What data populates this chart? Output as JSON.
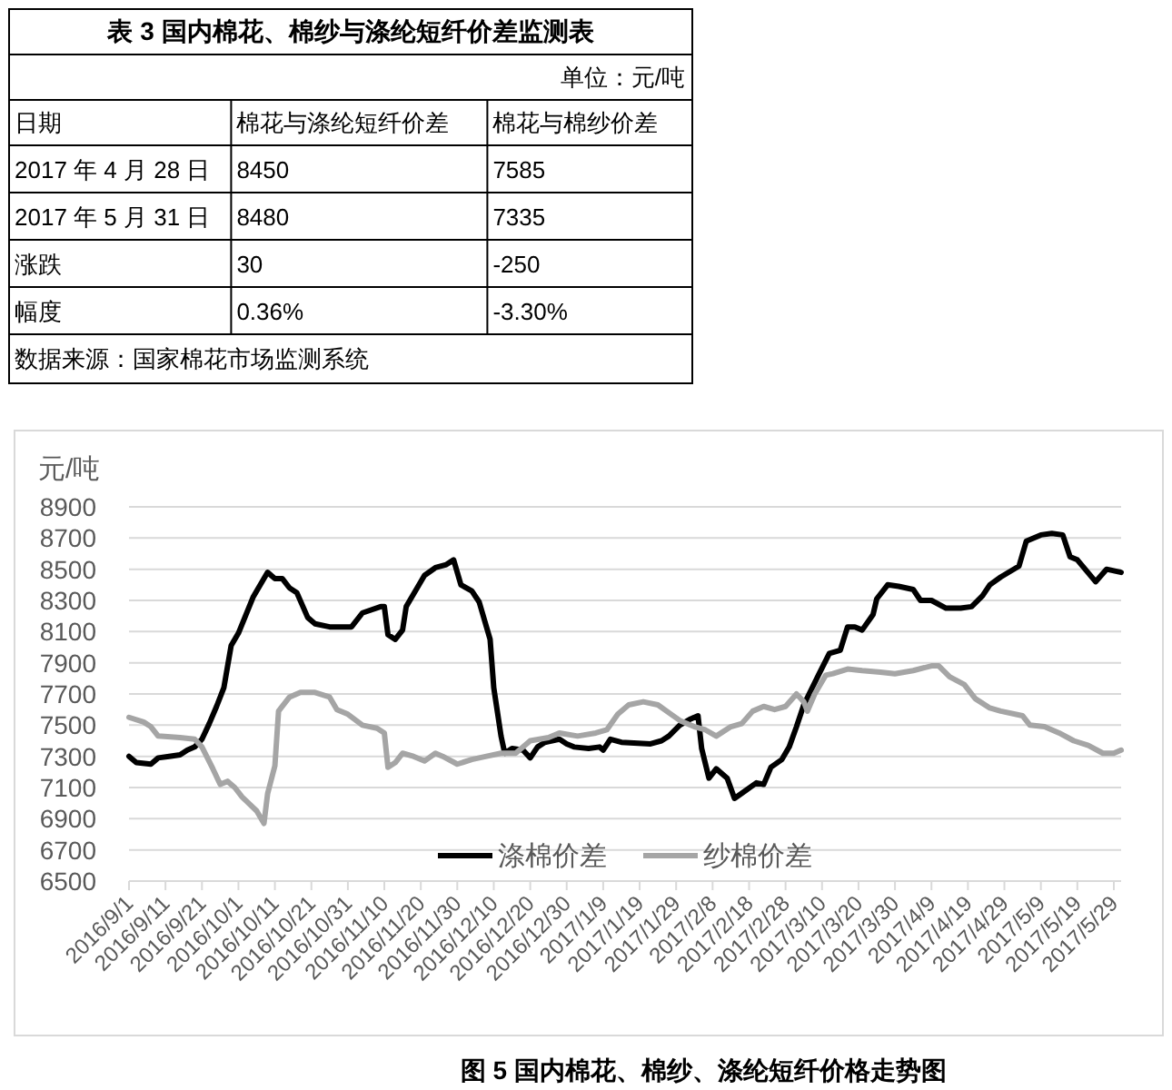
{
  "chart_data": [
    {
      "type": "other",
      "title": "表 3 国内棉花、棉纱与涤纶短纤价差监测表",
      "subtitle": "单位：元/吨",
      "ylabel": "日期",
      "categories": [
        "棉花与涤纶短纤价差",
        "棉花与棉纱价差"
      ],
      "y_categories": [
        "2017 年 4 月 28 日",
        "2017 年 5 月 31 日",
        "涨跌",
        "幅度"
      ],
      "cell_labels": [
        [
          "8450",
          "7585"
        ],
        [
          "8480",
          "7335"
        ],
        [
          "30",
          "-250"
        ],
        [
          "0.36%",
          "-3.30%"
        ]
      ],
      "annotations": [
        "数据来源：国家棉花市场监测系统"
      ]
    },
    {
      "type": "line",
      "title": "图 5 国内棉花、棉纱、涤纶短纤价格走势图",
      "ylabel": "元/吨",
      "xlim": [
        "2016-09-01",
        "2017-05-31"
      ],
      "ylim": [
        6500,
        8900
      ],
      "xticks": [
        {
          "value": "2016-09-01",
          "label": "2016/9/1"
        },
        {
          "value": "2016-09-11",
          "label": "2016/9/11"
        },
        {
          "value": "2016-09-21",
          "label": "2016/9/21"
        },
        {
          "value": "2016-10-01",
          "label": "2016/10/1"
        },
        {
          "value": "2016-10-11",
          "label": "2016/10/11"
        },
        {
          "value": "2016-10-21",
          "label": "2016/10/21"
        },
        {
          "value": "2016-10-31",
          "label": "2016/10/31"
        },
        {
          "value": "2016-11-10",
          "label": "2016/11/10"
        },
        {
          "value": "2016-11-20",
          "label": "2016/11/20"
        },
        {
          "value": "2016-11-30",
          "label": "2016/11/30"
        },
        {
          "value": "2016-12-10",
          "label": "2016/12/10"
        },
        {
          "value": "2016-12-20",
          "label": "2016/12/20"
        },
        {
          "value": "2016-12-30",
          "label": "2016/12/30"
        },
        {
          "value": "2017-01-09",
          "label": "2017/1/9"
        },
        {
          "value": "2017-01-19",
          "label": "2017/1/19"
        },
        {
          "value": "2017-01-29",
          "label": "2017/1/29"
        },
        {
          "value": "2017-02-08",
          "label": "2017/2/8"
        },
        {
          "value": "2017-02-18",
          "label": "2017/2/18"
        },
        {
          "value": "2017-02-28",
          "label": "2017/2/28"
        },
        {
          "value": "2017-03-10",
          "label": "2017/3/10"
        },
        {
          "value": "2017-03-20",
          "label": "2017/3/20"
        },
        {
          "value": "2017-03-30",
          "label": "2017/3/30"
        },
        {
          "value": "2017-04-09",
          "label": "2017/4/9"
        },
        {
          "value": "2017-04-19",
          "label": "2017/4/19"
        },
        {
          "value": "2017-04-29",
          "label": "2017/4/29"
        },
        {
          "value": "2017-05-09",
          "label": "2017/5/9"
        },
        {
          "value": "2017-05-19",
          "label": "2017/5/19"
        },
        {
          "value": "2017-05-29",
          "label": "2017/5/29"
        }
      ],
      "yticks": [
        6500,
        6700,
        6900,
        7100,
        7300,
        7500,
        7700,
        7900,
        8100,
        8300,
        8500,
        8700,
        8900
      ],
      "grid": "y",
      "legend": "bottom",
      "series": [
        {
          "name": "涤棉价差",
          "color": "#000000",
          "x": [
            "2016-09-01",
            "2016-09-03",
            "2016-09-07",
            "2016-09-09",
            "2016-09-12",
            "2016-09-15",
            "2016-09-17",
            "2016-09-19",
            "2016-09-21",
            "2016-09-23",
            "2016-09-25",
            "2016-09-27",
            "2016-09-29",
            "2016-10-01",
            "2016-10-05",
            "2016-10-09",
            "2016-10-11",
            "2016-10-13",
            "2016-10-15",
            "2016-10-17",
            "2016-10-20",
            "2016-10-22",
            "2016-10-26",
            "2016-11-01",
            "2016-11-04",
            "2016-11-09",
            "2016-11-10",
            "2016-11-11",
            "2016-11-13",
            "2016-11-15",
            "2016-11-16",
            "2016-11-19",
            "2016-11-21",
            "2016-11-24",
            "2016-11-27",
            "2016-11-29",
            "2016-12-01",
            "2016-12-04",
            "2016-12-06",
            "2016-12-09",
            "2016-12-10",
            "2016-12-12",
            "2016-12-13",
            "2016-12-15",
            "2016-12-18",
            "2016-12-20",
            "2016-12-22",
            "2016-12-24",
            "2016-12-28",
            "2016-12-30",
            "2017-01-01",
            "2017-01-05",
            "2017-01-08",
            "2017-01-09",
            "2017-01-11",
            "2017-01-14",
            "2017-01-22",
            "2017-01-25",
            "2017-01-27",
            "2017-01-30",
            "2017-02-02",
            "2017-02-04",
            "2017-02-05",
            "2017-02-07",
            "2017-02-09",
            "2017-02-12",
            "2017-02-14",
            "2017-02-17",
            "2017-02-20",
            "2017-02-22",
            "2017-02-24",
            "2017-02-27",
            "2017-03-01",
            "2017-03-03",
            "2017-03-05",
            "2017-03-09",
            "2017-03-12",
            "2017-03-15",
            "2017-03-17",
            "2017-03-19",
            "2017-03-21",
            "2017-03-24",
            "2017-03-25",
            "2017-03-28",
            "2017-03-31",
            "2017-04-04",
            "2017-04-06",
            "2017-04-09",
            "2017-04-13",
            "2017-04-17",
            "2017-04-20",
            "2017-04-23",
            "2017-04-25",
            "2017-04-28",
            "2017-05-03",
            "2017-05-05",
            "2017-05-09",
            "2017-05-12",
            "2017-05-15",
            "2017-05-17",
            "2017-05-19",
            "2017-05-24",
            "2017-05-27",
            "2017-05-31"
          ],
          "values": [
            7300,
            7260,
            7250,
            7290,
            7300,
            7310,
            7340,
            7360,
            7410,
            7510,
            7620,
            7740,
            8010,
            8090,
            8320,
            8480,
            8440,
            8440,
            8380,
            8350,
            8190,
            8150,
            8130,
            8130,
            8220,
            8260,
            8260,
            8080,
            8050,
            8110,
            8260,
            8380,
            8460,
            8510,
            8530,
            8560,
            8400,
            8360,
            8290,
            8050,
            7740,
            7430,
            7320,
            7350,
            7340,
            7290,
            7360,
            7390,
            7410,
            7380,
            7360,
            7350,
            7360,
            7340,
            7410,
            7390,
            7380,
            7400,
            7430,
            7500,
            7540,
            7560,
            7350,
            7160,
            7220,
            7160,
            7030,
            7080,
            7130,
            7120,
            7230,
            7280,
            7360,
            7490,
            7630,
            7820,
            7960,
            7980,
            8130,
            8130,
            8110,
            8210,
            8310,
            8400,
            8390,
            8370,
            8300,
            8300,
            8250,
            8250,
            8260,
            8330,
            8400,
            8450,
            8520,
            8680,
            8720,
            8730,
            8720,
            8580,
            8560,
            8420,
            8500,
            8480
          ]
        },
        {
          "name": "纱棉价差",
          "color": "#a5a5a5",
          "x": [
            "2016-09-01",
            "2016-09-05",
            "2016-09-07",
            "2016-09-09",
            "2016-09-15",
            "2016-09-19",
            "2016-09-21",
            "2016-09-24",
            "2016-09-26",
            "2016-09-28",
            "2016-09-30",
            "2016-10-02",
            "2016-10-06",
            "2016-10-08",
            "2016-10-09",
            "2016-10-11",
            "2016-10-12",
            "2016-10-15",
            "2016-10-18",
            "2016-10-22",
            "2016-10-26",
            "2016-10-28",
            "2016-10-31",
            "2016-11-04",
            "2016-11-08",
            "2016-11-10",
            "2016-11-11",
            "2016-11-13",
            "2016-11-15",
            "2016-11-18",
            "2016-11-21",
            "2016-11-24",
            "2016-11-26",
            "2016-11-30",
            "2016-12-04",
            "2016-12-08",
            "2016-12-12",
            "2016-12-16",
            "2016-12-20",
            "2016-12-25",
            "2016-12-28",
            "2017-01-02",
            "2017-01-07",
            "2017-01-10",
            "2017-01-13",
            "2017-01-16",
            "2017-01-20",
            "2017-01-24",
            "2017-01-27",
            "2017-01-30",
            "2017-02-03",
            "2017-02-06",
            "2017-02-09",
            "2017-02-13",
            "2017-02-16",
            "2017-02-19",
            "2017-02-22",
            "2017-02-25",
            "2017-02-28",
            "2017-03-03",
            "2017-03-05",
            "2017-03-06",
            "2017-03-08",
            "2017-03-11",
            "2017-03-13",
            "2017-03-17",
            "2017-03-21",
            "2017-03-26",
            "2017-03-30",
            "2017-04-04",
            "2017-04-09",
            "2017-04-11",
            "2017-04-14",
            "2017-04-18",
            "2017-04-21",
            "2017-04-25",
            "2017-04-28",
            "2017-05-04",
            "2017-05-06",
            "2017-05-10",
            "2017-05-14",
            "2017-05-18",
            "2017-05-22",
            "2017-05-26",
            "2017-05-29",
            "2017-05-31"
          ],
          "values": [
            7550,
            7520,
            7490,
            7430,
            7420,
            7410,
            7360,
            7220,
            7120,
            7140,
            7100,
            7040,
            6950,
            6870,
            7060,
            7240,
            7590,
            7680,
            7710,
            7710,
            7680,
            7600,
            7570,
            7500,
            7480,
            7450,
            7230,
            7260,
            7320,
            7300,
            7270,
            7320,
            7300,
            7250,
            7280,
            7300,
            7320,
            7320,
            7400,
            7420,
            7450,
            7430,
            7450,
            7470,
            7570,
            7630,
            7650,
            7630,
            7580,
            7530,
            7490,
            7470,
            7430,
            7490,
            7510,
            7590,
            7620,
            7600,
            7620,
            7700,
            7650,
            7590,
            7700,
            7820,
            7830,
            7860,
            7850,
            7840,
            7830,
            7850,
            7880,
            7880,
            7810,
            7760,
            7670,
            7610,
            7590,
            7560,
            7500,
            7490,
            7450,
            7400,
            7370,
            7320,
            7320,
            7340
          ]
        }
      ]
    }
  ]
}
